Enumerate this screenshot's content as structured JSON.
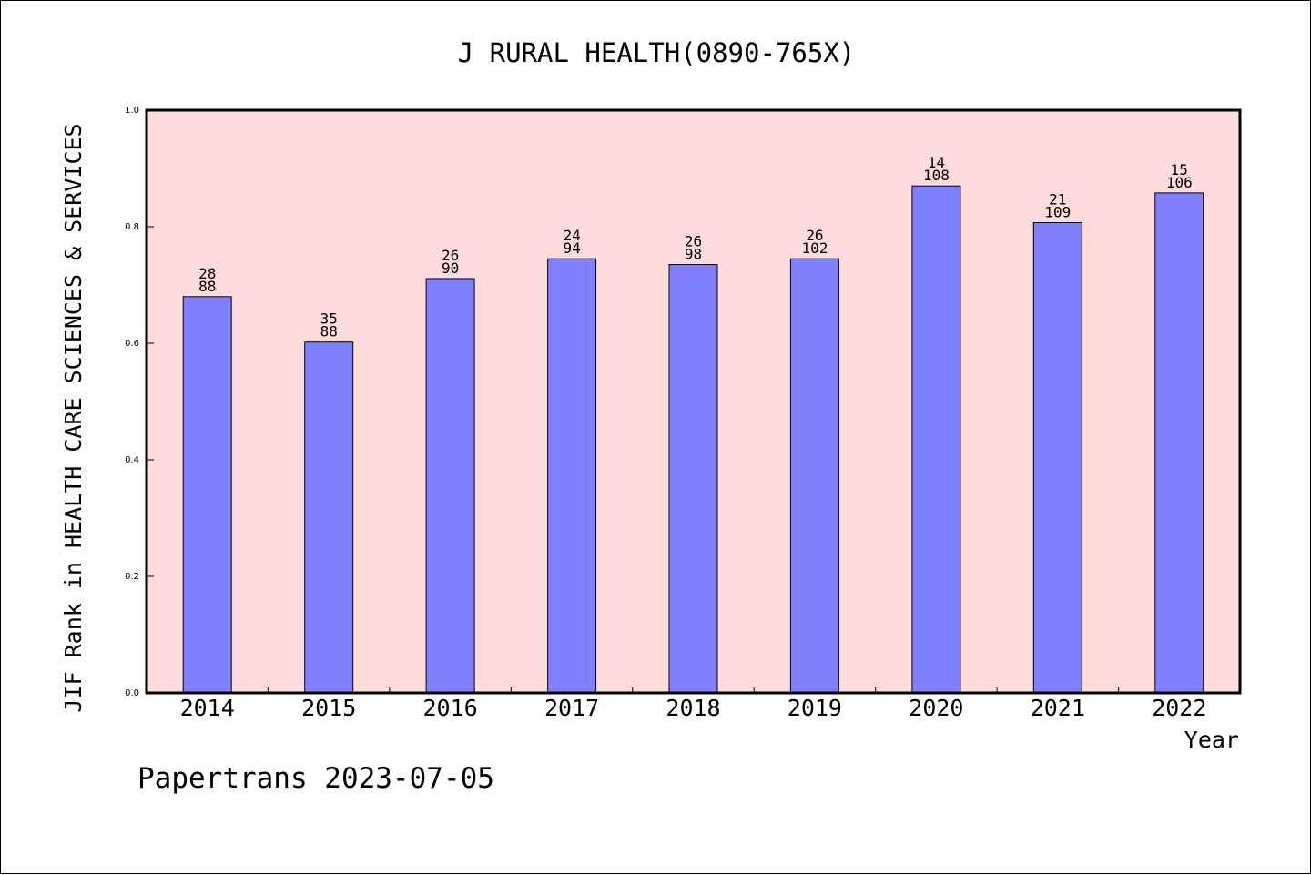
{
  "chart_data": {
    "type": "bar",
    "title": "J RURAL HEALTH(0890-765X)",
    "xlabel": "Year",
    "ylabel": "JIF Rank in HEALTH CARE SCIENCES & SERVICES",
    "ylim": [
      0,
      1.0
    ],
    "yticks": [
      "0.0",
      "0.2",
      "0.4",
      "0.6",
      "0.8",
      "1.0"
    ],
    "categories": [
      "2014",
      "2015",
      "2016",
      "2017",
      "2018",
      "2019",
      "2020",
      "2021",
      "2022"
    ],
    "values": [
      0.68,
      0.602,
      0.711,
      0.745,
      0.735,
      0.745,
      0.87,
      0.807,
      0.858
    ],
    "rank": [
      "28",
      "35",
      "26",
      "24",
      "26",
      "26",
      "14",
      "21",
      "15"
    ],
    "total": [
      "88",
      "88",
      "90",
      "94",
      "98",
      "102",
      "108",
      "109",
      "106"
    ],
    "grid": false,
    "colors": {
      "bar_fill": "#8080ff",
      "bar_stroke": "#000000",
      "plot_background": "#ffdcdc",
      "axis": "#000000"
    }
  },
  "footer": "Papertrans 2023-07-05"
}
